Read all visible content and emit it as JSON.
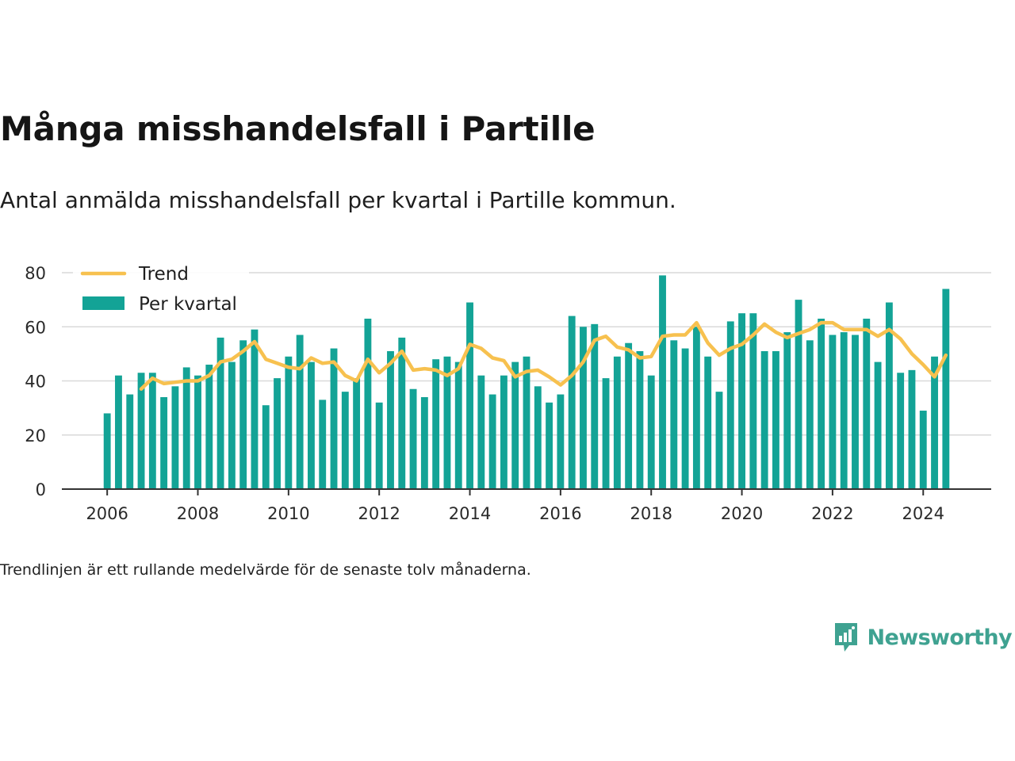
{
  "header": {
    "title": "Många misshandelsfall i Partille",
    "subtitle": "Antal anmälda misshandelsfall per kvartal i Partille kommun."
  },
  "footnote": "Trendlinjen är ett rullande medelvärde för de senaste tolv månaderna.",
  "brand": {
    "name": "Newsworthy",
    "icon": "newsworthy-logo-icon",
    "color": "#3fa291"
  },
  "colors": {
    "bars": "#13a396",
    "trend": "#f7c14f",
    "grid": "#d9d9d9",
    "axis": "#333333"
  },
  "chart_data": {
    "type": "bar",
    "title": "Många misshandelsfall i Partille",
    "xlabel": "",
    "ylabel": "",
    "ylim": [
      0,
      80
    ],
    "yticks": [
      0,
      20,
      40,
      60,
      80
    ],
    "xlim": [
      2005,
      2025.5
    ],
    "xticks": [
      2006,
      2008,
      2010,
      2012,
      2014,
      2016,
      2018,
      2020,
      2022,
      2024
    ],
    "grid": true,
    "legend": {
      "placement": "top-left",
      "entries": [
        "Trend",
        "Per kvartal"
      ]
    },
    "categories": [
      "2006 Q1",
      "2006 Q2",
      "2006 Q3",
      "2006 Q4",
      "2007 Q1",
      "2007 Q2",
      "2007 Q3",
      "2007 Q4",
      "2008 Q1",
      "2008 Q2",
      "2008 Q3",
      "2008 Q4",
      "2009 Q1",
      "2009 Q2",
      "2009 Q3",
      "2009 Q4",
      "2010 Q1",
      "2010 Q2",
      "2010 Q3",
      "2010 Q4",
      "2011 Q1",
      "2011 Q2",
      "2011 Q3",
      "2011 Q4",
      "2012 Q1",
      "2012 Q2",
      "2012 Q3",
      "2012 Q4",
      "2013 Q1",
      "2013 Q2",
      "2013 Q3",
      "2013 Q4",
      "2014 Q1",
      "2014 Q2",
      "2014 Q3",
      "2014 Q4",
      "2015 Q1",
      "2015 Q2",
      "2015 Q3",
      "2015 Q4",
      "2016 Q1",
      "2016 Q2",
      "2016 Q3",
      "2016 Q4",
      "2017 Q1",
      "2017 Q2",
      "2017 Q3",
      "2017 Q4",
      "2018 Q1",
      "2018 Q2",
      "2018 Q3",
      "2018 Q4",
      "2019 Q1",
      "2019 Q2",
      "2019 Q3",
      "2019 Q4",
      "2020 Q1",
      "2020 Q2",
      "2020 Q3",
      "2020 Q4",
      "2021 Q1",
      "2021 Q2",
      "2021 Q3",
      "2021 Q4",
      "2022 Q1",
      "2022 Q2",
      "2022 Q3",
      "2022 Q4",
      "2023 Q1",
      "2023 Q2",
      "2023 Q3",
      "2023 Q4",
      "2024 Q1",
      "2024 Q2",
      "2024 Q3"
    ],
    "series": [
      {
        "name": "Per kvartal",
        "type": "bar",
        "values": [
          28,
          42,
          35,
          43,
          43,
          34,
          38,
          45,
          42,
          46,
          56,
          47,
          55,
          59,
          31,
          41,
          49,
          57,
          47,
          33,
          52,
          36,
          41,
          63,
          32,
          51,
          56,
          37,
          34,
          48,
          49,
          47,
          69,
          42,
          35,
          42,
          47,
          49,
          38,
          32,
          35,
          64,
          60,
          61,
          41,
          49,
          54,
          51,
          42,
          79,
          55,
          52,
          60,
          49,
          36,
          62,
          65,
          65,
          51,
          51,
          58,
          70,
          55,
          63,
          57,
          58,
          57,
          63,
          47,
          69,
          43,
          44,
          29,
          49,
          74
        ]
      },
      {
        "name": "Trend",
        "type": "line",
        "values": [
          null,
          null,
          null,
          37,
          41,
          39,
          39.5,
          40,
          40,
          42,
          47,
          48,
          51,
          54.5,
          48,
          46.5,
          45,
          44.5,
          48.5,
          46.5,
          47,
          42,
          40,
          48,
          43,
          46.5,
          51,
          44,
          44.5,
          44,
          42,
          44.5,
          53.5,
          52,
          48.5,
          47.5,
          41.5,
          43.5,
          44,
          41.5,
          38.5,
          42,
          47,
          55,
          56.5,
          52.5,
          51.5,
          48.5,
          49,
          56.5,
          57,
          57,
          61.5,
          54,
          49.5,
          52,
          53.5,
          57,
          61,
          58,
          56,
          57.5,
          59,
          61.5,
          61.5,
          59,
          59,
          59,
          56.5,
          59,
          55.5,
          50,
          46,
          41.5,
          49.5
        ]
      }
    ]
  }
}
